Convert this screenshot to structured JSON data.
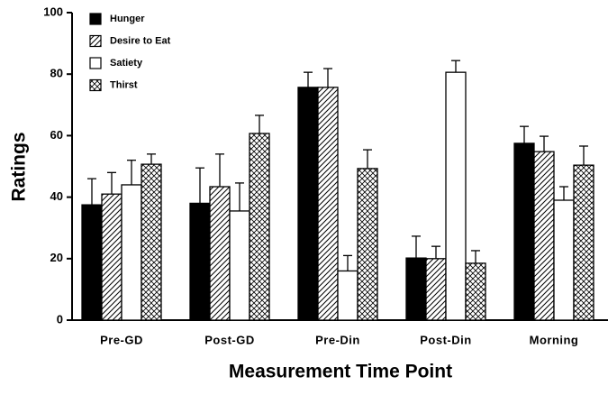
{
  "chart_data": {
    "type": "bar",
    "x_label": "Measurement Time Point",
    "y_label": "Ratings",
    "categories": [
      "Pre-GD",
      "Post-GD",
      "Pre-Din",
      "Post-Din",
      "Morning"
    ],
    "ylim": [
      0,
      100
    ],
    "yticks": [
      0,
      20,
      40,
      60,
      80,
      100
    ],
    "legend_position": "upper-left",
    "series": [
      {
        "name": "Hunger",
        "color": "#000000",
        "pattern": "solid",
        "values": [
          37.5,
          38,
          75.7,
          20.2,
          57.5
        ],
        "errors": [
          8.5,
          11.5,
          4.9,
          7.1,
          5.5
        ]
      },
      {
        "name": "Desire to Eat",
        "color": "#ffffff",
        "pattern": "hatch",
        "values": [
          41,
          43.4,
          75.7,
          20,
          54.8
        ],
        "errors": [
          7,
          10.6,
          6.1,
          4,
          5
        ]
      },
      {
        "name": "Satiety",
        "color": "#ffffff",
        "pattern": "none",
        "values": [
          44,
          35.5,
          16,
          80.6,
          39
        ],
        "errors": [
          8,
          9.1,
          5,
          3.8,
          4.4
        ]
      },
      {
        "name": "Thirst",
        "color": "#ffffff",
        "pattern": "crosshatch",
        "values": [
          50.7,
          60.7,
          49.3,
          18.5,
          50.4
        ],
        "errors": [
          3.3,
          5.9,
          6.1,
          4.1,
          6.2
        ]
      }
    ]
  }
}
